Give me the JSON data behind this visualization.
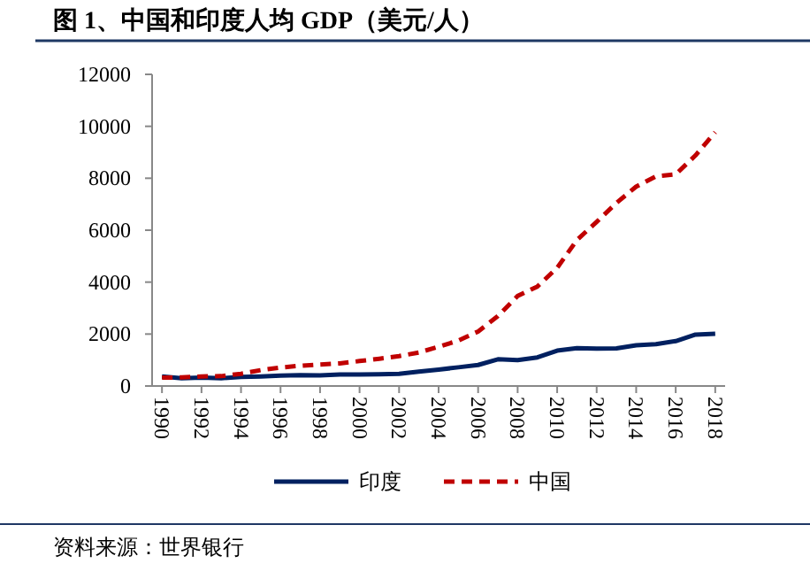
{
  "chart_data": {
    "type": "line",
    "title": "图 1、中国和印度人均 GDP（美元/人）",
    "annotations": [
      "资料来源：世界银行"
    ],
    "x": [
      1990,
      1991,
      1992,
      1993,
      1994,
      1995,
      1996,
      1997,
      1998,
      1999,
      2000,
      2001,
      2002,
      2003,
      2004,
      2005,
      2006,
      2007,
      2008,
      2009,
      2010,
      2011,
      2012,
      2013,
      2014,
      2015,
      2016,
      2017,
      2018
    ],
    "series": [
      {
        "name": "印度",
        "color": "#002060",
        "line_style": "solid",
        "values": [
          370,
          300,
          320,
          300,
          350,
          370,
          400,
          420,
          410,
          440,
          440,
          450,
          470,
          550,
          630,
          720,
          810,
          1030,
          1000,
          1100,
          1360,
          1460,
          1440,
          1450,
          1570,
          1610,
          1730,
          1980,
          2010
        ]
      },
      {
        "name": "中国",
        "color": "#c00000",
        "line_style": "dashed",
        "values": [
          320,
          330,
          370,
          380,
          470,
          610,
          710,
          780,
          830,
          870,
          960,
          1050,
          1150,
          1290,
          1510,
          1750,
          2100,
          2690,
          3470,
          3830,
          4550,
          5620,
          6320,
          7050,
          7680,
          8070,
          8150,
          8880,
          9770
        ]
      }
    ],
    "xlim": [
      1989.5,
      2018.5
    ],
    "xticks": [
      1990,
      1992,
      1994,
      1996,
      1998,
      2000,
      2002,
      2004,
      2006,
      2008,
      2010,
      2012,
      2014,
      2016,
      2018
    ],
    "ylim": [
      0,
      12000
    ],
    "yticks": [
      0,
      2000,
      4000,
      6000,
      8000,
      10000,
      12000
    ],
    "legend": "bottom"
  }
}
